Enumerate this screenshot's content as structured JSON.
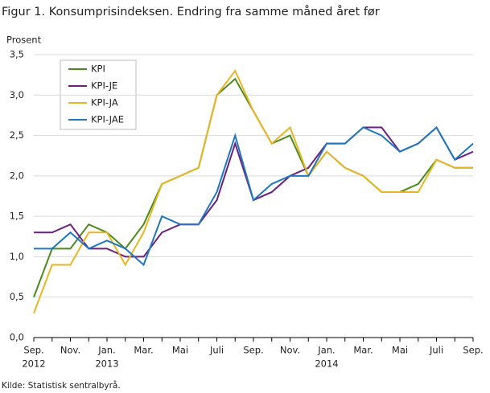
{
  "chart_data": {
    "type": "line",
    "title": "Figur 1. Konsumprisindeksen. Endring fra samme måned året før",
    "y_label": "Prosent",
    "source": "Kilde: Statistisk sentralbyrå.",
    "categories": [
      "Sep.",
      null,
      "Nov.",
      null,
      "Jan.",
      null,
      "Mar.",
      null,
      "Mai",
      null,
      "Juli",
      null,
      "Sep.",
      null,
      "Nov.",
      null,
      "Jan.",
      null,
      "Mar.",
      null,
      "Mai",
      null,
      "Juli",
      null,
      "Sep."
    ],
    "x_year_labels": [
      "2012",
      null,
      null,
      null,
      "2013",
      null,
      null,
      null,
      null,
      null,
      null,
      null,
      null,
      null,
      null,
      null,
      "2014",
      null,
      null,
      null,
      null,
      null,
      null,
      null,
      null
    ],
    "series": [
      {
        "name": "KPI",
        "color": "#4b8b1e",
        "values": [
          0.5,
          1.1,
          1.1,
          1.4,
          1.3,
          1.1,
          1.4,
          1.9,
          2.0,
          2.1,
          3.0,
          3.2,
          2.8,
          2.4,
          2.5,
          2.0,
          2.3,
          2.1,
          2.0,
          1.8,
          1.8,
          1.9,
          2.2,
          2.1,
          2.1
        ]
      },
      {
        "name": "KPI-JE",
        "color": "#6b1f7e",
        "values": [
          1.3,
          1.3,
          1.4,
          1.1,
          1.1,
          1.0,
          1.0,
          1.3,
          1.4,
          1.4,
          1.7,
          2.4,
          1.7,
          1.8,
          2.0,
          2.1,
          2.4,
          2.4,
          2.6,
          2.6,
          2.3,
          2.4,
          2.6,
          2.2,
          2.3
        ]
      },
      {
        "name": "KPI-JA",
        "color": "#e8b623",
        "values": [
          0.3,
          0.9,
          0.9,
          1.3,
          1.3,
          0.9,
          1.3,
          1.9,
          2.0,
          2.1,
          3.0,
          3.3,
          2.8,
          2.4,
          2.6,
          2.0,
          2.3,
          2.1,
          2.0,
          1.8,
          1.8,
          1.8,
          2.2,
          2.1,
          2.1
        ]
      },
      {
        "name": "KPI-JAE",
        "color": "#1f77c0",
        "values": [
          1.1,
          1.1,
          1.3,
          1.1,
          1.2,
          1.1,
          0.9,
          1.5,
          1.4,
          1.4,
          1.8,
          2.5,
          1.7,
          1.9,
          2.0,
          2.0,
          2.4,
          2.4,
          2.6,
          2.5,
          2.3,
          2.4,
          2.6,
          2.2,
          2.4
        ]
      }
    ],
    "ylim": [
      0,
      3.5
    ],
    "yticks": [
      {
        "value": 0,
        "label": "0,0"
      },
      {
        "value": 0.5,
        "label": "0,5"
      },
      {
        "value": 1,
        "label": "1,0"
      },
      {
        "value": 1.5,
        "label": "1,5"
      },
      {
        "value": 2,
        "label": "2,0"
      },
      {
        "value": 2.5,
        "label": "2,5"
      },
      {
        "value": 3,
        "label": "3,0"
      },
      {
        "value": 3.5,
        "label": "3,5"
      }
    ],
    "grid": true,
    "legend": "upper-left"
  }
}
